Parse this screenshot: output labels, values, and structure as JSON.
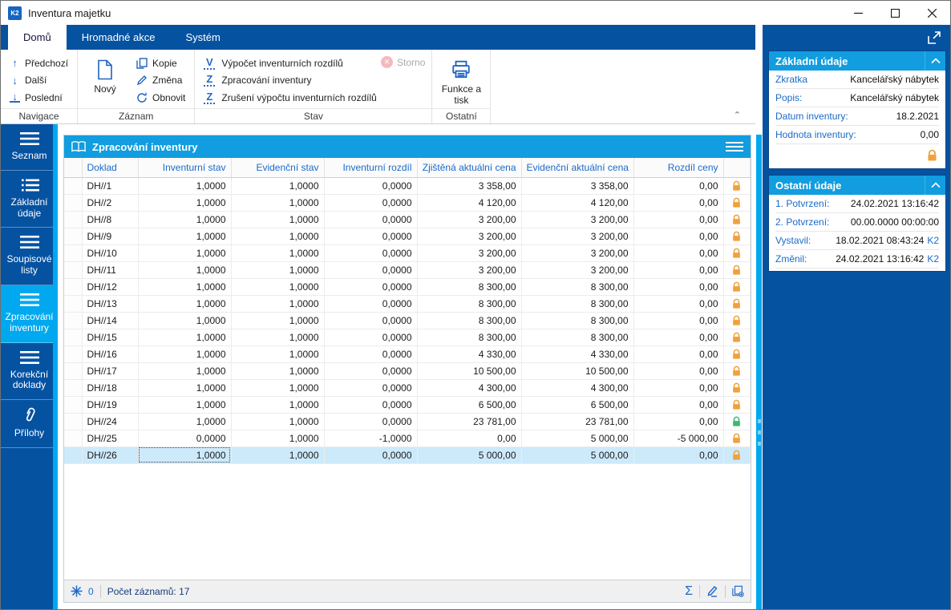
{
  "window": {
    "title": "Inventura majetku",
    "icon_text": "K2"
  },
  "tabs": [
    {
      "label": "Domů",
      "active": true
    },
    {
      "label": "Hromadné akce",
      "active": false
    },
    {
      "label": "Systém",
      "active": false
    }
  ],
  "ribbon": {
    "navigace": {
      "label": "Navigace",
      "prev": "Předchozí",
      "next": "Další",
      "last": "Poslední"
    },
    "zaznam": {
      "label": "Záznam",
      "new": "Nový",
      "copy": "Kopie",
      "change": "Změna",
      "refresh": "Obnovit"
    },
    "stav": {
      "label": "Stav",
      "calc_letter": "V",
      "calc": "Výpočet inventurních rozdílů",
      "process_letter": "Z",
      "process": "Zpracování inventury",
      "cancel_letter": "Z",
      "cancel": "Zrušení výpočtu inventurních rozdílů",
      "storno": "Storno"
    },
    "ostatni": {
      "label": "Ostatní",
      "print": "Funkce a tisk"
    }
  },
  "sidebar": {
    "items": [
      {
        "label": "Seznam",
        "active": false
      },
      {
        "label": "Základní údaje",
        "active": false
      },
      {
        "label": "Soupisové listy",
        "active": false
      },
      {
        "label": "Zpracování inventury",
        "active": true
      },
      {
        "label": "Korekční doklady",
        "active": false
      },
      {
        "label": "Přílohy",
        "active": false
      }
    ]
  },
  "panel": {
    "title": "Zpracování inventury",
    "table": {
      "columns": [
        "Doklad",
        "Inventurní stav",
        "Evidenční stav",
        "Inventurní rozdíl",
        "Zjištěná aktuální cena",
        "Evidenční aktuální cena",
        "Rozdíl ceny"
      ],
      "rows": [
        {
          "cells": [
            "DH//1",
            "1,0000",
            "1,0000",
            "0,0000",
            "3 358,00",
            "3 358,00",
            "0,00"
          ],
          "lock": "orange",
          "selected": false
        },
        {
          "cells": [
            "DH//2",
            "1,0000",
            "1,0000",
            "0,0000",
            "4 120,00",
            "4 120,00",
            "0,00"
          ],
          "lock": "orange",
          "selected": false
        },
        {
          "cells": [
            "DH//8",
            "1,0000",
            "1,0000",
            "0,0000",
            "3 200,00",
            "3 200,00",
            "0,00"
          ],
          "lock": "orange",
          "selected": false
        },
        {
          "cells": [
            "DH//9",
            "1,0000",
            "1,0000",
            "0,0000",
            "3 200,00",
            "3 200,00",
            "0,00"
          ],
          "lock": "orange",
          "selected": false
        },
        {
          "cells": [
            "DH//10",
            "1,0000",
            "1,0000",
            "0,0000",
            "3 200,00",
            "3 200,00",
            "0,00"
          ],
          "lock": "orange",
          "selected": false
        },
        {
          "cells": [
            "DH//11",
            "1,0000",
            "1,0000",
            "0,0000",
            "3 200,00",
            "3 200,00",
            "0,00"
          ],
          "lock": "orange",
          "selected": false
        },
        {
          "cells": [
            "DH//12",
            "1,0000",
            "1,0000",
            "0,0000",
            "8 300,00",
            "8 300,00",
            "0,00"
          ],
          "lock": "orange",
          "selected": false
        },
        {
          "cells": [
            "DH//13",
            "1,0000",
            "1,0000",
            "0,0000",
            "8 300,00",
            "8 300,00",
            "0,00"
          ],
          "lock": "orange",
          "selected": false
        },
        {
          "cells": [
            "DH//14",
            "1,0000",
            "1,0000",
            "0,0000",
            "8 300,00",
            "8 300,00",
            "0,00"
          ],
          "lock": "orange",
          "selected": false
        },
        {
          "cells": [
            "DH//15",
            "1,0000",
            "1,0000",
            "0,0000",
            "8 300,00",
            "8 300,00",
            "0,00"
          ],
          "lock": "orange",
          "selected": false
        },
        {
          "cells": [
            "DH//16",
            "1,0000",
            "1,0000",
            "0,0000",
            "4 330,00",
            "4 330,00",
            "0,00"
          ],
          "lock": "orange",
          "selected": false
        },
        {
          "cells": [
            "DH//17",
            "1,0000",
            "1,0000",
            "0,0000",
            "10 500,00",
            "10 500,00",
            "0,00"
          ],
          "lock": "orange",
          "selected": false
        },
        {
          "cells": [
            "DH//18",
            "1,0000",
            "1,0000",
            "0,0000",
            "4 300,00",
            "4 300,00",
            "0,00"
          ],
          "lock": "orange",
          "selected": false
        },
        {
          "cells": [
            "DH//19",
            "1,0000",
            "1,0000",
            "0,0000",
            "6 500,00",
            "6 500,00",
            "0,00"
          ],
          "lock": "orange",
          "selected": false
        },
        {
          "cells": [
            "DH//24",
            "1,0000",
            "1,0000",
            "0,0000",
            "23 781,00",
            "23 781,00",
            "0,00"
          ],
          "lock": "green",
          "selected": false
        },
        {
          "cells": [
            "DH//25",
            "0,0000",
            "1,0000",
            "-1,0000",
            "0,00",
            "5 000,00",
            "-5 000,00"
          ],
          "lock": "orange",
          "selected": false
        },
        {
          "cells": [
            "DH//26",
            "1,0000",
            "1,0000",
            "0,0000",
            "5 000,00",
            "5 000,00",
            "0,00"
          ],
          "lock": "orange",
          "selected": true
        }
      ]
    },
    "status": {
      "flake_count": "0",
      "records": "Počet záznamů: 17",
      "sum_icon": "Σ"
    }
  },
  "right": {
    "sections": [
      {
        "title": "Základní údaje",
        "rows": [
          {
            "label": "Zkratka",
            "value": "Kancelářský nábytek"
          },
          {
            "label": "Popis:",
            "value": "Kancelářský nábytek"
          },
          {
            "label": "Datum inventury:",
            "value": "18.2.2021"
          },
          {
            "label": "Hodnota inventury:",
            "value": "0,00"
          }
        ],
        "lock": true
      },
      {
        "title": "Ostatní údaje",
        "rows": [
          {
            "label": "1. Potvrzení:",
            "value": "24.02.2021 13:16:42"
          },
          {
            "label": "2. Potvrzení:",
            "value": "00.00.0000 00:00:00"
          },
          {
            "label": "Vystavil:",
            "value": "18.02.2021 08:43:24",
            "tag": "K2"
          },
          {
            "label": "Změnil:",
            "value": "24.02.2021 13:16:42",
            "tag": "K2"
          }
        ],
        "lock": false
      }
    ]
  },
  "colors": {
    "dark_blue": "#0552a1",
    "header_blue": "#119ddf",
    "cyan": "#00a9ef",
    "link_blue": "#1b6ac9",
    "lock_orange": "#f0a13c",
    "lock_green": "#3cb96f",
    "selected_row": "#cdeafb"
  }
}
